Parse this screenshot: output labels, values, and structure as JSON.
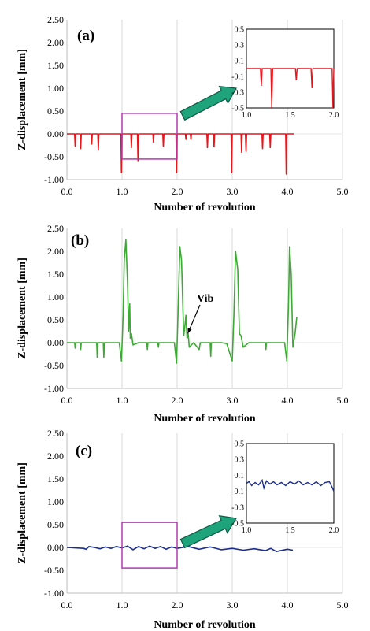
{
  "chart_data": [
    {
      "type": "line",
      "panel_label": "(a)",
      "xlabel": "Number of revolution",
      "ylabel": "Z-displacement [mm]",
      "xlim": [
        0,
        5
      ],
      "ylim": [
        -1,
        2.5
      ],
      "x_ticks": [
        "0.0",
        "1.0",
        "2.0",
        "3.0",
        "4.0",
        "5.0"
      ],
      "y_ticks": [
        "-1.00",
        "-0.50",
        "0.00",
        "0.50",
        "1.00",
        "1.50",
        "2.00",
        "2.50"
      ],
      "grid": "vertical",
      "color": "#e8151b",
      "highlight_box": {
        "x": [
          1,
          2
        ],
        "y": [
          -0.55,
          0.45
        ]
      },
      "series": [
        {
          "values": [
            [
              0.0,
              0
            ],
            [
              0.14,
              0
            ],
            [
              0.15,
              -0.28
            ],
            [
              0.16,
              0
            ],
            [
              0.24,
              0
            ],
            [
              0.25,
              -0.32
            ],
            [
              0.26,
              0
            ],
            [
              0.44,
              0
            ],
            [
              0.45,
              -0.22
            ],
            [
              0.46,
              0
            ],
            [
              0.56,
              0
            ],
            [
              0.57,
              -0.35
            ],
            [
              0.58,
              0
            ],
            [
              0.98,
              0
            ],
            [
              0.99,
              -0.85
            ],
            [
              1.0,
              0
            ],
            [
              1.16,
              0
            ],
            [
              1.17,
              -0.3
            ],
            [
              1.18,
              0
            ],
            [
              1.28,
              0
            ],
            [
              1.29,
              -0.6
            ],
            [
              1.3,
              0
            ],
            [
              1.56,
              0
            ],
            [
              1.57,
              -0.18
            ],
            [
              1.58,
              0
            ],
            [
              1.74,
              0
            ],
            [
              1.75,
              -0.28
            ],
            [
              1.76,
              0
            ],
            [
              1.98,
              0
            ],
            [
              1.99,
              -0.85
            ],
            [
              2.0,
              0
            ],
            [
              2.15,
              0
            ],
            [
              2.16,
              -0.12
            ],
            [
              2.17,
              0
            ],
            [
              2.24,
              0
            ],
            [
              2.25,
              -0.12
            ],
            [
              2.26,
              0
            ],
            [
              2.54,
              0
            ],
            [
              2.55,
              -0.3
            ],
            [
              2.56,
              0
            ],
            [
              2.66,
              0
            ],
            [
              2.67,
              -0.28
            ],
            [
              2.68,
              0
            ],
            [
              2.98,
              0
            ],
            [
              2.99,
              -0.85
            ],
            [
              3.0,
              0
            ],
            [
              3.16,
              0
            ],
            [
              3.17,
              -0.4
            ],
            [
              3.18,
              0
            ],
            [
              3.24,
              0
            ],
            [
              3.25,
              -0.38
            ],
            [
              3.26,
              0
            ],
            [
              3.54,
              0
            ],
            [
              3.55,
              -0.32
            ],
            [
              3.56,
              0
            ],
            [
              3.68,
              0
            ],
            [
              3.69,
              -0.3
            ],
            [
              3.7,
              0
            ],
            [
              3.97,
              0
            ],
            [
              3.98,
              -0.88
            ],
            [
              3.99,
              0
            ],
            [
              4.1,
              0
            ],
            [
              4.12,
              0
            ]
          ]
        }
      ],
      "inset": {
        "xlim": [
          1,
          2
        ],
        "ylim": [
          -0.5,
          0.5
        ],
        "x_ticks": [
          "1.0",
          "1.5",
          "2.0"
        ],
        "y_ticks": [
          "0.5",
          "0.3",
          "0.1",
          "-0.1",
          "-0.3",
          "-0.5"
        ],
        "values": [
          [
            1.0,
            0
          ],
          [
            1.16,
            0
          ],
          [
            1.17,
            -0.22
          ],
          [
            1.18,
            0
          ],
          [
            1.28,
            0
          ],
          [
            1.29,
            -0.5
          ],
          [
            1.3,
            0
          ],
          [
            1.56,
            0
          ],
          [
            1.57,
            -0.15
          ],
          [
            1.58,
            0
          ],
          [
            1.74,
            0
          ],
          [
            1.75,
            -0.25
          ],
          [
            1.76,
            0
          ],
          [
            1.98,
            0
          ],
          [
            1.99,
            -0.5
          ],
          [
            2.0,
            0
          ]
        ]
      }
    },
    {
      "type": "line",
      "panel_label": "(b)",
      "xlabel": "Number of revolution",
      "ylabel": "Z-displacement [mm]",
      "xlim": [
        0,
        5
      ],
      "ylim": [
        -1,
        2.5
      ],
      "x_ticks": [
        "0.0",
        "1.0",
        "2.0",
        "3.0",
        "4.0",
        "5.0"
      ],
      "y_ticks": [
        "-1.00",
        "-0.50",
        "0.00",
        "0.50",
        "1.00",
        "1.50",
        "2.00",
        "2.50"
      ],
      "grid": "vertical",
      "color": "#3ea936",
      "annotation": {
        "text": "Vib",
        "x": 2.15,
        "y": 0.15
      },
      "series": [
        {
          "values": [
            [
              0.0,
              0
            ],
            [
              0.14,
              0
            ],
            [
              0.15,
              -0.12
            ],
            [
              0.16,
              0
            ],
            [
              0.24,
              0
            ],
            [
              0.25,
              -0.15
            ],
            [
              0.26,
              0
            ],
            [
              0.54,
              0
            ],
            [
              0.55,
              -0.32
            ],
            [
              0.56,
              0
            ],
            [
              0.66,
              0
            ],
            [
              0.67,
              -0.32
            ],
            [
              0.68,
              0
            ],
            [
              0.95,
              0
            ],
            [
              0.99,
              -0.4
            ],
            [
              1.02,
              0.6
            ],
            [
              1.04,
              1.8
            ],
            [
              1.07,
              2.25
            ],
            [
              1.1,
              1.3
            ],
            [
              1.12,
              0.25
            ],
            [
              1.14,
              0.85
            ],
            [
              1.15,
              0.1
            ],
            [
              1.17,
              0.2
            ],
            [
              1.2,
              -0.05
            ],
            [
              1.3,
              0
            ],
            [
              1.45,
              0
            ],
            [
              1.46,
              -0.15
            ],
            [
              1.47,
              0
            ],
            [
              1.65,
              0
            ],
            [
              1.66,
              -0.1
            ],
            [
              1.67,
              0
            ],
            [
              1.95,
              0
            ],
            [
              1.99,
              -0.45
            ],
            [
              2.02,
              0.8
            ],
            [
              2.05,
              2.1
            ],
            [
              2.08,
              1.8
            ],
            [
              2.12,
              0.15
            ],
            [
              2.14,
              0.35
            ],
            [
              2.16,
              0.6
            ],
            [
              2.18,
              0.1
            ],
            [
              2.2,
              0.2
            ],
            [
              2.22,
              -0.1
            ],
            [
              2.3,
              0
            ],
            [
              2.4,
              -0.15
            ],
            [
              2.42,
              0
            ],
            [
              2.6,
              0
            ],
            [
              2.61,
              -0.3
            ],
            [
              2.62,
              0
            ],
            [
              2.8,
              0
            ],
            [
              2.9,
              -0.02
            ],
            [
              3.0,
              -0.4
            ],
            [
              3.03,
              0.6
            ],
            [
              3.06,
              2.0
            ],
            [
              3.1,
              1.6
            ],
            [
              3.13,
              0.2
            ],
            [
              3.16,
              0.15
            ],
            [
              3.2,
              -0.1
            ],
            [
              3.3,
              0
            ],
            [
              3.6,
              0
            ],
            [
              3.61,
              -0.15
            ],
            [
              3.62,
              0
            ],
            [
              3.8,
              0
            ],
            [
              3.95,
              0
            ],
            [
              3.99,
              -0.4
            ],
            [
              4.02,
              0.8
            ],
            [
              4.04,
              2.1
            ],
            [
              4.07,
              1.5
            ],
            [
              4.1,
              -0.1
            ],
            [
              4.14,
              0.2
            ],
            [
              4.17,
              0.55
            ]
          ]
        }
      ]
    },
    {
      "type": "line",
      "panel_label": "(c)",
      "xlabel": "Number of revolution",
      "ylabel": "Z-displacement [mm]",
      "xlim": [
        0,
        5
      ],
      "ylim": [
        -1,
        2.5
      ],
      "x_ticks": [
        "0.0",
        "1.0",
        "2.0",
        "3.0",
        "4.0",
        "5.0"
      ],
      "y_ticks": [
        "-1.00",
        "-0.50",
        "0.00",
        "0.50",
        "1.00",
        "1.50",
        "2.00",
        "2.50"
      ],
      "grid": "vertical",
      "color": "#1c2e8c",
      "highlight_box": {
        "x": [
          1,
          2
        ],
        "y": [
          -0.45,
          0.55
        ]
      },
      "series": [
        {
          "values": [
            [
              0.0,
              0
            ],
            [
              0.3,
              -0.02
            ],
            [
              0.35,
              -0.04
            ],
            [
              0.4,
              0.02
            ],
            [
              0.5,
              0
            ],
            [
              0.6,
              -0.03
            ],
            [
              0.7,
              0.01
            ],
            [
              0.8,
              -0.02
            ],
            [
              0.9,
              0.02
            ],
            [
              1.0,
              -0.01
            ],
            [
              1.1,
              0.03
            ],
            [
              1.2,
              -0.05
            ],
            [
              1.3,
              0.02
            ],
            [
              1.4,
              -0.03
            ],
            [
              1.5,
              0.03
            ],
            [
              1.6,
              -0.02
            ],
            [
              1.7,
              0.02
            ],
            [
              1.8,
              -0.04
            ],
            [
              1.9,
              0.01
            ],
            [
              2.0,
              -0.02
            ],
            [
              2.2,
              0.02
            ],
            [
              2.4,
              -0.04
            ],
            [
              2.6,
              0.01
            ],
            [
              2.8,
              -0.05
            ],
            [
              3.0,
              -0.02
            ],
            [
              3.2,
              -0.06
            ],
            [
              3.4,
              -0.03
            ],
            [
              3.6,
              -0.07
            ],
            [
              3.7,
              -0.02
            ],
            [
              3.8,
              -0.09
            ],
            [
              4.0,
              -0.04
            ],
            [
              4.1,
              -0.06
            ]
          ]
        }
      ],
      "inset": {
        "xlim": [
          1,
          2
        ],
        "ylim": [
          -0.5,
          0.5
        ],
        "x_ticks": [
          "1.0",
          "1.5",
          "2.0"
        ],
        "y_ticks": [
          "0.5",
          "0.3",
          "0.1",
          "-0.1",
          "-0.3",
          "-0.5"
        ],
        "values": [
          [
            1.0,
            0.0
          ],
          [
            1.03,
            0.02
          ],
          [
            1.06,
            -0.03
          ],
          [
            1.1,
            0.01
          ],
          [
            1.14,
            -0.02
          ],
          [
            1.18,
            0.04
          ],
          [
            1.2,
            -0.06
          ],
          [
            1.23,
            0.03
          ],
          [
            1.27,
            -0.01
          ],
          [
            1.31,
            0.02
          ],
          [
            1.35,
            -0.02
          ],
          [
            1.4,
            0.01
          ],
          [
            1.45,
            -0.03
          ],
          [
            1.5,
            0.02
          ],
          [
            1.55,
            -0.01
          ],
          [
            1.6,
            0.03
          ],
          [
            1.65,
            -0.02
          ],
          [
            1.7,
            0.01
          ],
          [
            1.75,
            -0.02
          ],
          [
            1.8,
            0.02
          ],
          [
            1.85,
            -0.03
          ],
          [
            1.9,
            0.01
          ],
          [
            1.95,
            0.02
          ],
          [
            1.98,
            -0.05
          ],
          [
            2.0,
            -0.1
          ]
        ]
      }
    }
  ]
}
